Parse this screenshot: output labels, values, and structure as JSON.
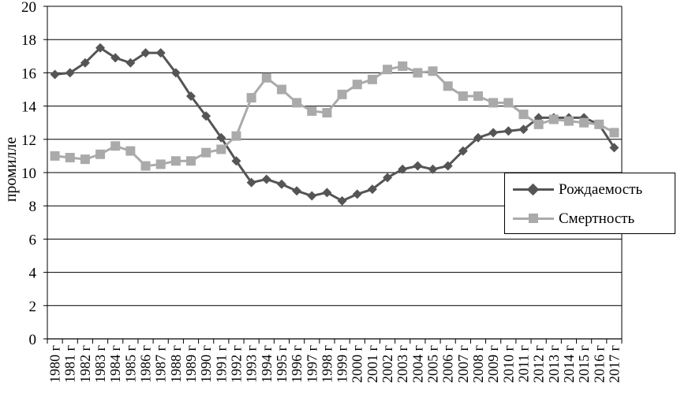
{
  "chart_data": {
    "type": "line",
    "title": "",
    "xlabel": "",
    "ylabel": "промилле",
    "ylim": [
      0,
      20
    ],
    "yticks": [
      "0",
      "2",
      "4",
      "6",
      "8",
      "10",
      "12",
      "14",
      "16",
      "18",
      "20"
    ],
    "grid": "horizontal",
    "legend_position": "right",
    "categories": [
      "1980 г",
      "1981 г",
      "1982 г",
      "1983 г",
      "1984 г",
      "1985 г",
      "1986 г",
      "1987 г",
      "1988 г",
      "1989 г",
      "1990 г",
      "1991 г",
      "1992 г",
      "1993 г",
      "1994 г",
      "1995 г",
      "1996 г",
      "1997 г",
      "1998 г",
      "1999 г",
      "2000 г",
      "2001 г",
      "2002 г",
      "2003 г",
      "2004 г",
      "2005 г",
      "2006 г",
      "2007 г",
      "2008 г",
      "2009 г",
      "2010 г",
      "2011 г",
      "2012 г",
      "2013 г",
      "2014 г",
      "2015 г",
      "2016 г",
      "2017 г"
    ],
    "series": [
      {
        "name": "Рождаемость",
        "color": "#555555",
        "marker": "diamond",
        "values": [
          15.9,
          16.0,
          16.6,
          17.5,
          16.9,
          16.6,
          17.2,
          17.2,
          16.0,
          14.6,
          13.4,
          12.1,
          10.7,
          9.4,
          9.6,
          9.3,
          8.9,
          8.6,
          8.8,
          8.3,
          8.7,
          9.0,
          9.7,
          10.2,
          10.4,
          10.2,
          10.4,
          11.3,
          12.1,
          12.4,
          12.5,
          12.6,
          13.3,
          13.3,
          13.3,
          13.3,
          12.9,
          11.5
        ]
      },
      {
        "name": "Смертность",
        "color": "#aaaaaa",
        "marker": "square",
        "values": [
          11.0,
          10.9,
          10.8,
          11.1,
          11.6,
          11.3,
          10.4,
          10.5,
          10.7,
          10.7,
          11.2,
          11.4,
          12.2,
          14.5,
          15.7,
          15.0,
          14.2,
          13.7,
          13.6,
          14.7,
          15.3,
          15.6,
          16.2,
          16.4,
          16.0,
          16.1,
          15.2,
          14.6,
          14.6,
          14.2,
          14.2,
          13.5,
          12.9,
          13.2,
          13.1,
          13.0,
          12.9,
          12.4
        ]
      }
    ]
  }
}
